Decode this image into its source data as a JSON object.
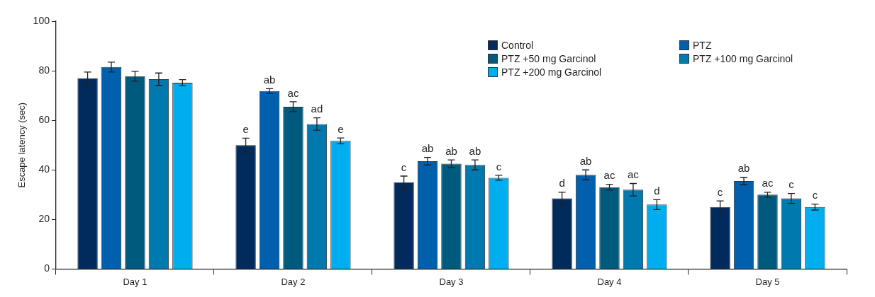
{
  "chart_data": {
    "type": "bar",
    "ylabel": "Escape latency (sec)",
    "categories": [
      "Day 1",
      "Day 2",
      "Day 3",
      "Day 4",
      "Day 5"
    ],
    "series": [
      {
        "name": "Control",
        "color": "#002b5c",
        "values": [
          77,
          50,
          35,
          28.5,
          25
        ],
        "errors": [
          2.5,
          2.8,
          2.5,
          2.5,
          2.5
        ],
        "value_labels": [
          null,
          "e",
          "c",
          "d",
          "c"
        ]
      },
      {
        "name": "PTZ",
        "color": "#0060ae",
        "values": [
          81.5,
          71.8,
          43.5,
          38,
          35.5
        ],
        "errors": [
          2,
          1,
          1.5,
          2,
          1.5
        ],
        "value_labels": [
          null,
          "ab",
          "ab",
          "ab",
          "ab"
        ]
      },
      {
        "name": "PTZ +50 mg Garcinol",
        "color": "#005a7d",
        "values": [
          77.8,
          65.5,
          42.5,
          33,
          30
        ],
        "errors": [
          2,
          2,
          1.5,
          1.2,
          1
        ],
        "value_labels": [
          null,
          "ac",
          "ab",
          "ac",
          "ac"
        ]
      },
      {
        "name": "PTZ +100 mg Garcinol",
        "color": "#0079ae",
        "values": [
          76.6,
          58.5,
          42,
          32,
          28.5
        ],
        "errors": [
          2.5,
          2.5,
          2,
          2.5,
          2
        ],
        "value_labels": [
          null,
          "ad",
          "ab",
          "ac",
          "c"
        ]
      },
      {
        "name": "PTZ +200 mg Garcinol",
        "color": "#00aeef",
        "values": [
          75.2,
          51.7,
          36.8,
          26,
          25
        ],
        "errors": [
          1.2,
          1.2,
          1,
          2,
          1.2
        ],
        "value_labels": [
          null,
          "e",
          "c",
          "d",
          "c"
        ]
      }
    ],
    "ylim": [
      0,
      100
    ],
    "yticks": [
      0,
      20,
      40,
      60,
      80,
      100
    ],
    "grid": false,
    "legend": "top right"
  }
}
